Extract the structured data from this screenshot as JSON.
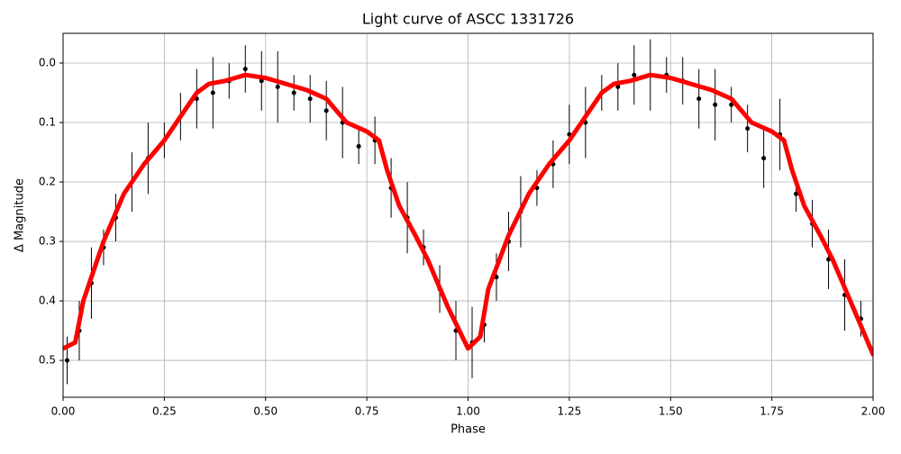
{
  "chart_data": {
    "type": "scatter",
    "title": "Light curve of ASCC 1331726",
    "x_label": "Phase",
    "y_label": "Δ Magnitude",
    "xlim": [
      0,
      2
    ],
    "ylim": [
      0.562,
      -0.05
    ],
    "xticks": [
      {
        "value": 0,
        "label": "0.00"
      },
      {
        "value": 0.25,
        "label": "0.25"
      },
      {
        "value": 0.5,
        "label": "0.50"
      },
      {
        "value": 0.75,
        "label": "0.75"
      },
      {
        "value": 1,
        "label": "1.00"
      },
      {
        "value": 1.25,
        "label": "1.25"
      },
      {
        "value": 1.5,
        "label": "1.50"
      },
      {
        "value": 1.75,
        "label": "1.75"
      },
      {
        "value": 2,
        "label": "2.00"
      }
    ],
    "yticks": [
      {
        "value": 0,
        "label": "0.0"
      },
      0.1,
      0.2,
      0.3,
      0.4,
      0.5
    ],
    "grid": true,
    "points": {
      "color": "#000000",
      "x": [
        0.01,
        0.04,
        0.07,
        0.1,
        0.13,
        0.17,
        0.21,
        0.25,
        0.29,
        0.33,
        0.37,
        0.41,
        0.45,
        0.49,
        0.53,
        0.57,
        0.61,
        0.65,
        0.69,
        0.73,
        0.77,
        0.81,
        0.85,
        0.89,
        0.93,
        0.97,
        1.01,
        1.04,
        1.07,
        1.1,
        1.13,
        1.17,
        1.21,
        1.25,
        1.29,
        1.33,
        1.37,
        1.41,
        1.45,
        1.49,
        1.53,
        1.57,
        1.61,
        1.65,
        1.69,
        1.73,
        1.77,
        1.81,
        1.85,
        1.89,
        1.93,
        1.97
      ],
      "y": [
        0.5,
        0.45,
        0.37,
        0.31,
        0.26,
        0.2,
        0.16,
        0.13,
        0.09,
        0.06,
        0.05,
        0.03,
        0.01,
        0.03,
        0.04,
        0.05,
        0.06,
        0.08,
        0.1,
        0.14,
        0.13,
        0.21,
        0.26,
        0.31,
        0.38,
        0.45,
        0.47,
        0.44,
        0.36,
        0.3,
        0.25,
        0.21,
        0.17,
        0.12,
        0.1,
        0.05,
        0.04,
        0.02,
        0.02,
        0.02,
        0.03,
        0.06,
        0.07,
        0.07,
        0.11,
        0.16,
        0.12,
        0.22,
        0.27,
        0.33,
        0.39,
        0.43
      ],
      "err": [
        0.04,
        0.05,
        0.06,
        0.03,
        0.04,
        0.05,
        0.06,
        0.03,
        0.04,
        0.05,
        0.06,
        0.03,
        0.04,
        0.05,
        0.06,
        0.03,
        0.04,
        0.05,
        0.06,
        0.03,
        0.04,
        0.05,
        0.06,
        0.03,
        0.04,
        0.05,
        0.06,
        0.03,
        0.04,
        0.05,
        0.06,
        0.03,
        0.04,
        0.05,
        0.06,
        0.03,
        0.04,
        0.05,
        0.06,
        0.03,
        0.04,
        0.05,
        0.06,
        0.03,
        0.04,
        0.05,
        0.06,
        0.03,
        0.04,
        0.05,
        0.06,
        0.03
      ]
    },
    "line": {
      "color": "#ff0000",
      "x": [
        0.0,
        0.03,
        0.05,
        0.1,
        0.15,
        0.2,
        0.25,
        0.3,
        0.33,
        0.36,
        0.4,
        0.45,
        0.5,
        0.55,
        0.6,
        0.65,
        0.7,
        0.75,
        0.78,
        0.8,
        0.83,
        0.87,
        0.9,
        0.95,
        1.0,
        1.03,
        1.05,
        1.1,
        1.15,
        1.2,
        1.25,
        1.3,
        1.33,
        1.36,
        1.4,
        1.45,
        1.5,
        1.55,
        1.6,
        1.65,
        1.7,
        1.75,
        1.78,
        1.8,
        1.83,
        1.87,
        1.9,
        1.95,
        2.0
      ],
      "y": [
        0.48,
        0.47,
        0.4,
        0.3,
        0.22,
        0.17,
        0.13,
        0.08,
        0.05,
        0.035,
        0.03,
        0.02,
        0.025,
        0.035,
        0.045,
        0.06,
        0.1,
        0.115,
        0.13,
        0.18,
        0.24,
        0.29,
        0.33,
        0.41,
        0.48,
        0.46,
        0.38,
        0.29,
        0.22,
        0.17,
        0.13,
        0.08,
        0.05,
        0.035,
        0.03,
        0.02,
        0.025,
        0.035,
        0.045,
        0.06,
        0.1,
        0.115,
        0.13,
        0.18,
        0.24,
        0.29,
        0.33,
        0.41,
        0.49
      ]
    }
  }
}
